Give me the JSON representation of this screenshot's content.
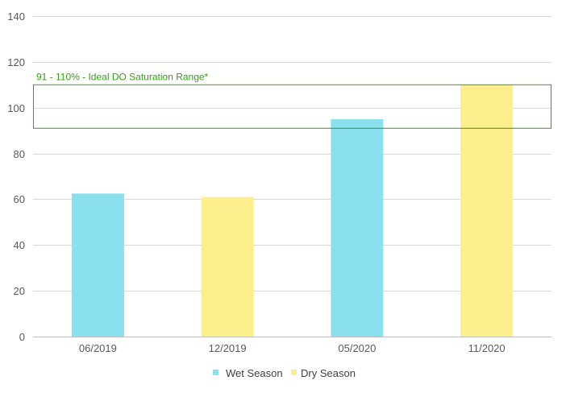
{
  "chart_data": {
    "type": "bar",
    "categories": [
      "06/2019",
      "12/2019",
      "05/2020",
      "11/2020"
    ],
    "values": [
      62.5,
      61,
      95,
      110
    ],
    "season": [
      "Wet Season",
      "Dry Season",
      "Wet Season",
      "Dry Season"
    ],
    "series": [
      {
        "name": "Wet Season",
        "color": "#8ae0ec"
      },
      {
        "name": "Dry Season",
        "color": "#fdee8d"
      }
    ],
    "ylim": [
      0,
      140
    ],
    "yticks": [
      0,
      20,
      40,
      60,
      80,
      100,
      120,
      140
    ],
    "grid": true,
    "legend_position": "bottom",
    "band": {
      "from": 91,
      "to": 110,
      "label": "91 - 110% - Ideal DO Saturation Range*",
      "color": "#3a9a19"
    },
    "title": "",
    "xlabel": "",
    "ylabel": ""
  }
}
